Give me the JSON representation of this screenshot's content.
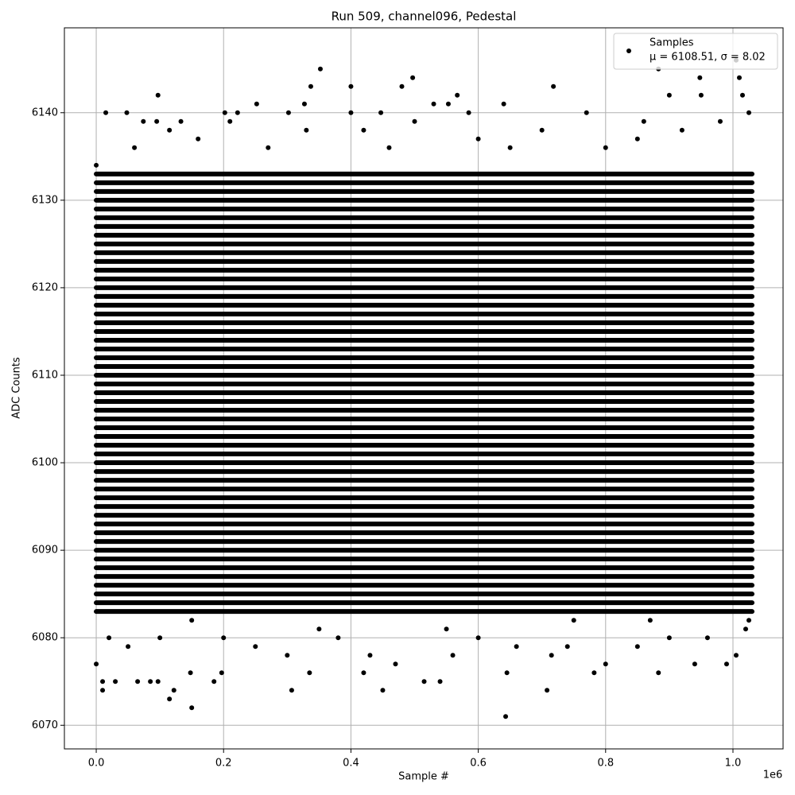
{
  "chart_data": {
    "type": "scatter",
    "title": "Run 509, channel096, Pedestal",
    "xlabel": "Sample #",
    "ylabel": "ADC Counts",
    "x_offset_label": "1e6",
    "xlim": [
      -50000,
      1078700
    ],
    "ylim": [
      6067.3,
      6149.7
    ],
    "xticks": [
      {
        "value": 0,
        "label": "0.0"
      },
      {
        "value": 200000,
        "label": "0.2"
      },
      {
        "value": 400000,
        "label": "0.4"
      },
      {
        "value": 600000,
        "label": "0.6"
      },
      {
        "value": 800000,
        "label": "0.8"
      },
      {
        "value": 1000000,
        "label": "1.0"
      }
    ],
    "yticks": [
      6070,
      6080,
      6090,
      6100,
      6110,
      6120,
      6130,
      6140
    ],
    "grid": true,
    "legend": "upper right",
    "dense_levels": [
      6083,
      6084,
      6085,
      6086,
      6087,
      6088,
      6089,
      6090,
      6091,
      6092,
      6093,
      6094,
      6095,
      6096,
      6097,
      6098,
      6099,
      6100,
      6101,
      6102,
      6103,
      6104,
      6105,
      6106,
      6107,
      6108,
      6109,
      6110,
      6111,
      6112,
      6113,
      6114,
      6115,
      6116,
      6117,
      6118,
      6119,
      6120,
      6121,
      6122,
      6123,
      6124,
      6125,
      6126,
      6127,
      6128,
      6129,
      6130,
      6131,
      6132,
      6133
    ],
    "dense_x_range": [
      0,
      1030000
    ],
    "series": [
      {
        "name": "Samples",
        "label": "μ = 6108.51, σ = 8.02",
        "color": "#000000",
        "x": [
          0,
          15000,
          48000,
          97000,
          95000,
          74000,
          133000,
          202000,
          222000,
          252000,
          302000,
          327000,
          337000,
          352000,
          400000,
          400000,
          447000,
          480000,
          497000,
          530000,
          553000,
          567000,
          585000,
          640000,
          718000,
          770000,
          883000,
          900000,
          948000,
          950000,
          1005000,
          1010000,
          1015000,
          1025000,
          115000,
          160000,
          210000,
          330000,
          420000,
          500000,
          600000,
          700000,
          800000,
          860000,
          920000,
          980000,
          60000,
          270000,
          460000,
          650000,
          850000,
          0,
          10000,
          10000,
          30000,
          65000,
          85000,
          97000,
          115000,
          122000,
          150000,
          148000,
          185000,
          197000,
          307000,
          335000,
          420000,
          450000,
          515000,
          540000,
          643000,
          645000,
          708000,
          782000,
          883000,
          715000,
          800000,
          990000,
          1005000,
          850000,
          940000,
          20000,
          50000,
          100000,
          200000,
          250000,
          300000,
          380000,
          430000,
          470000,
          560000,
          600000,
          660000,
          740000,
          900000,
          960000,
          1020000,
          1025000,
          550000,
          350000,
          150000,
          750000,
          870000
        ],
        "values": [
          6134,
          6140,
          6140,
          6142,
          6139,
          6139,
          6139,
          6140,
          6140,
          6141,
          6140,
          6141,
          6143,
          6145,
          6143,
          6140,
          6140,
          6143,
          6144,
          6141,
          6141,
          6142,
          6140,
          6141,
          6143,
          6140,
          6145,
          6142,
          6144,
          6142,
          6146,
          6144,
          6142,
          6140,
          6138,
          6137,
          6139,
          6138,
          6138,
          6139,
          6137,
          6138,
          6136,
          6139,
          6138,
          6139,
          6136,
          6136,
          6136,
          6136,
          6137,
          6077,
          6074,
          6075,
          6075,
          6075,
          6075,
          6075,
          6073,
          6074,
          6072,
          6076,
          6075,
          6076,
          6074,
          6076,
          6076,
          6074,
          6075,
          6075,
          6071,
          6076,
          6074,
          6076,
          6076,
          6078,
          6077,
          6077,
          6078,
          6079,
          6077,
          6080,
          6079,
          6080,
          6080,
          6079,
          6078,
          6080,
          6078,
          6077,
          6078,
          6080,
          6079,
          6079,
          6080,
          6080,
          6081,
          6082,
          6081,
          6081,
          6082,
          6082,
          6082
        ]
      }
    ]
  }
}
